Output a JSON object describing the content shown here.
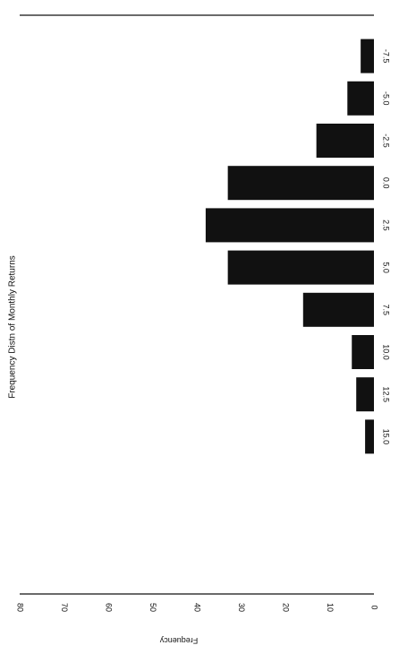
{
  "chart_data": {
    "type": "bar",
    "title": "Frequency Distn of Monthly Returns",
    "ylabel": "Frequency",
    "xlabel": "",
    "categories": [
      "-7.5",
      "-5.0",
      "-2.5",
      "0.0",
      "2.5",
      "5.0",
      "7.5",
      "10.0",
      "12.5",
      "15.0"
    ],
    "values": [
      3,
      6,
      13,
      33,
      38,
      33,
      16,
      5,
      4,
      2
    ],
    "xticks": [
      "-7.5",
      "-5.0",
      "-2.5",
      "0.0",
      "2.5",
      "5.0",
      "7.5",
      "10.0",
      "12.5",
      "15.0"
    ],
    "yticks": [
      "0",
      "10",
      "20",
      "30",
      "40",
      "50",
      "60",
      "70",
      "80"
    ],
    "ylim": [
      0,
      80
    ],
    "bar_color": "#111111",
    "grid": false,
    "legend": "none"
  }
}
